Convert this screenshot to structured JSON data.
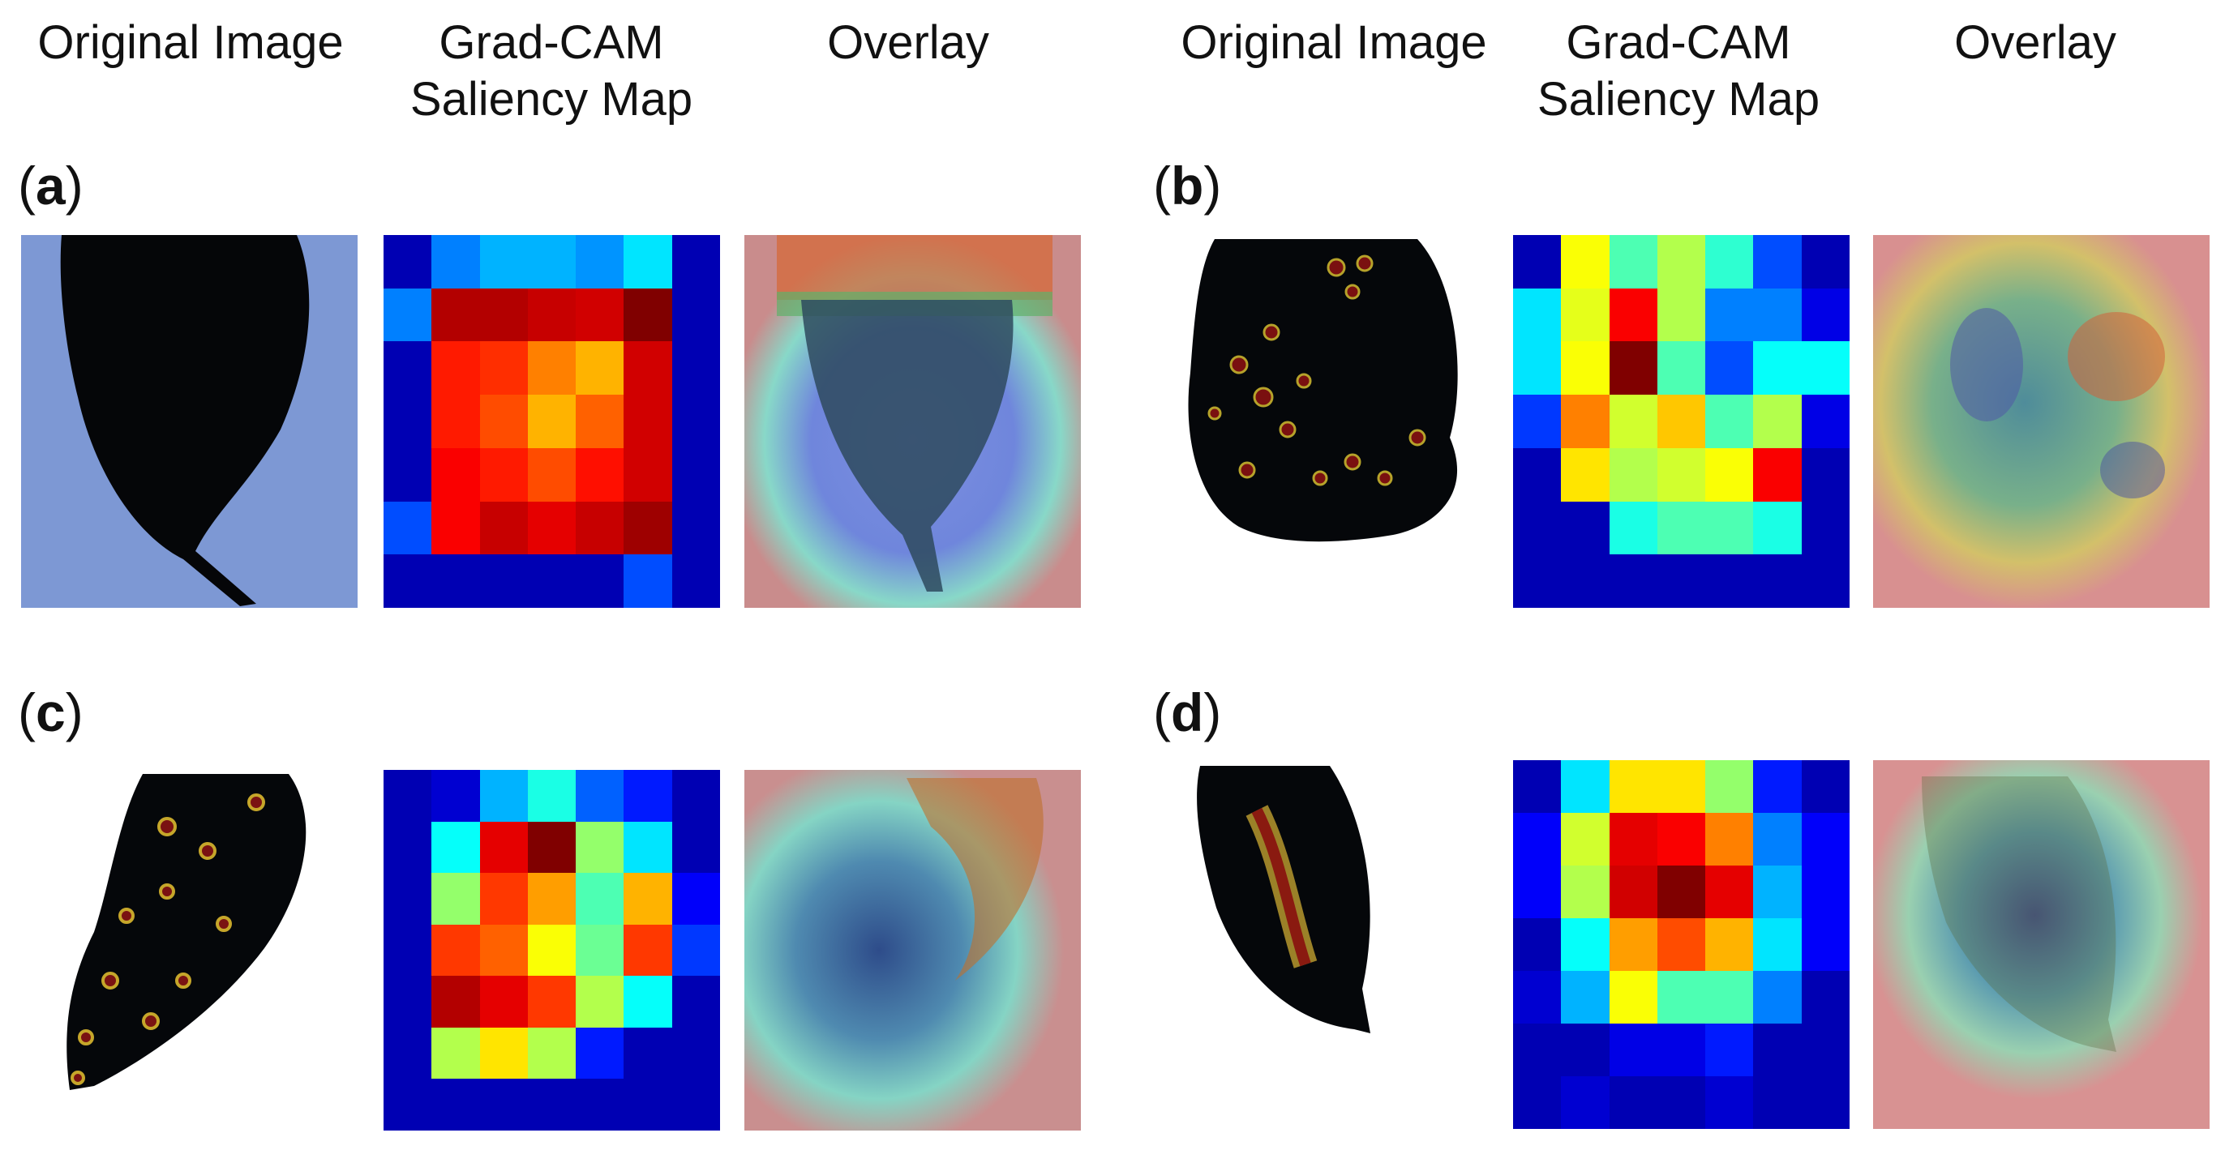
{
  "columns": [
    "Original Image",
    "Grad-CAM\nSaliency Map",
    "Overlay"
  ],
  "panels": [
    {
      "label": "a",
      "heatmap": [
        [
          0.05,
          0.25,
          0.3,
          0.3,
          0.27,
          0.35,
          0.05
        ],
        [
          0.25,
          0.95,
          0.95,
          0.93,
          0.92,
          1.0,
          0.05
        ],
        [
          0.05,
          0.85,
          0.83,
          0.75,
          0.7,
          0.92,
          0.05
        ],
        [
          0.05,
          0.85,
          0.8,
          0.7,
          0.78,
          0.92,
          0.05
        ],
        [
          0.05,
          0.88,
          0.85,
          0.8,
          0.86,
          0.92,
          0.05
        ],
        [
          0.2,
          0.88,
          0.93,
          0.9,
          0.93,
          0.97,
          0.05
        ],
        [
          0.05,
          0.05,
          0.05,
          0.05,
          0.05,
          0.2,
          0.05
        ]
      ]
    },
    {
      "label": "b",
      "heatmap": [
        [
          0.05,
          0.62,
          0.45,
          0.55,
          0.42,
          0.2,
          0.05
        ],
        [
          0.35,
          0.6,
          0.88,
          0.55,
          0.25,
          0.25,
          0.1
        ],
        [
          0.35,
          0.62,
          1.0,
          0.45,
          0.2,
          0.38,
          0.38
        ],
        [
          0.18,
          0.75,
          0.58,
          0.68,
          0.45,
          0.55,
          0.1
        ],
        [
          0.05,
          0.65,
          0.55,
          0.58,
          0.62,
          0.88,
          0.05
        ],
        [
          0.05,
          0.05,
          0.4,
          0.45,
          0.45,
          0.4,
          0.05
        ],
        [
          0.05,
          0.05,
          0.05,
          0.05,
          0.05,
          0.05,
          0.05
        ]
      ]
    },
    {
      "label": "c",
      "heatmap": [
        [
          0.05,
          0.08,
          0.3,
          0.4,
          0.22,
          0.15,
          0.05
        ],
        [
          0.05,
          0.38,
          0.9,
          1.0,
          0.52,
          0.35,
          0.05
        ],
        [
          0.05,
          0.52,
          0.82,
          0.72,
          0.45,
          0.7,
          0.12
        ],
        [
          0.05,
          0.82,
          0.78,
          0.62,
          0.48,
          0.82,
          0.18
        ],
        [
          0.05,
          0.95,
          0.9,
          0.82,
          0.55,
          0.38,
          0.05
        ],
        [
          0.05,
          0.55,
          0.65,
          0.55,
          0.15,
          0.05,
          0.05
        ],
        [
          0.05,
          0.05,
          0.05,
          0.05,
          0.05,
          0.05,
          0.05
        ]
      ]
    },
    {
      "label": "d",
      "heatmap": [
        [
          0.05,
          0.35,
          0.65,
          0.65,
          0.52,
          0.15,
          0.05
        ],
        [
          0.12,
          0.58,
          0.9,
          0.88,
          0.75,
          0.25,
          0.12
        ],
        [
          0.12,
          0.55,
          0.92,
          1.0,
          0.9,
          0.3,
          0.12
        ],
        [
          0.05,
          0.38,
          0.72,
          0.8,
          0.7,
          0.35,
          0.12
        ],
        [
          0.08,
          0.3,
          0.62,
          0.45,
          0.45,
          0.25,
          0.05
        ],
        [
          0.05,
          0.05,
          0.1,
          0.1,
          0.15,
          0.05,
          0.05
        ],
        [
          0.05,
          0.08,
          0.05,
          0.05,
          0.08,
          0.05,
          0.05
        ]
      ]
    }
  ]
}
